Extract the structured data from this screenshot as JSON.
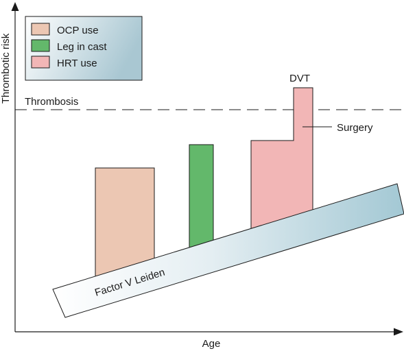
{
  "axes": {
    "x_label": "Age",
    "y_label": "Thrombotic risk"
  },
  "threshold": {
    "label": "Thrombosis"
  },
  "legend": {
    "items": [
      {
        "label": "OCP use",
        "color": "#ecc7b3"
      },
      {
        "label": "Leg in cast",
        "color": "#63b86b"
      },
      {
        "label": "HRT use",
        "color": "#f2b6b6"
      }
    ]
  },
  "baseline": {
    "label": "Factor V Leiden"
  },
  "annotations": {
    "dvt": "DVT",
    "surgery": "Surgery"
  },
  "colors": {
    "ocp": "#ecc7b3",
    "cast": "#63b86b",
    "hrt": "#f2b6b6",
    "legend_bg_start": "#ffffff",
    "legend_bg_end": "#a9c7d2",
    "band_start": "#ffffff",
    "band_end": "#a3c8d4"
  }
}
